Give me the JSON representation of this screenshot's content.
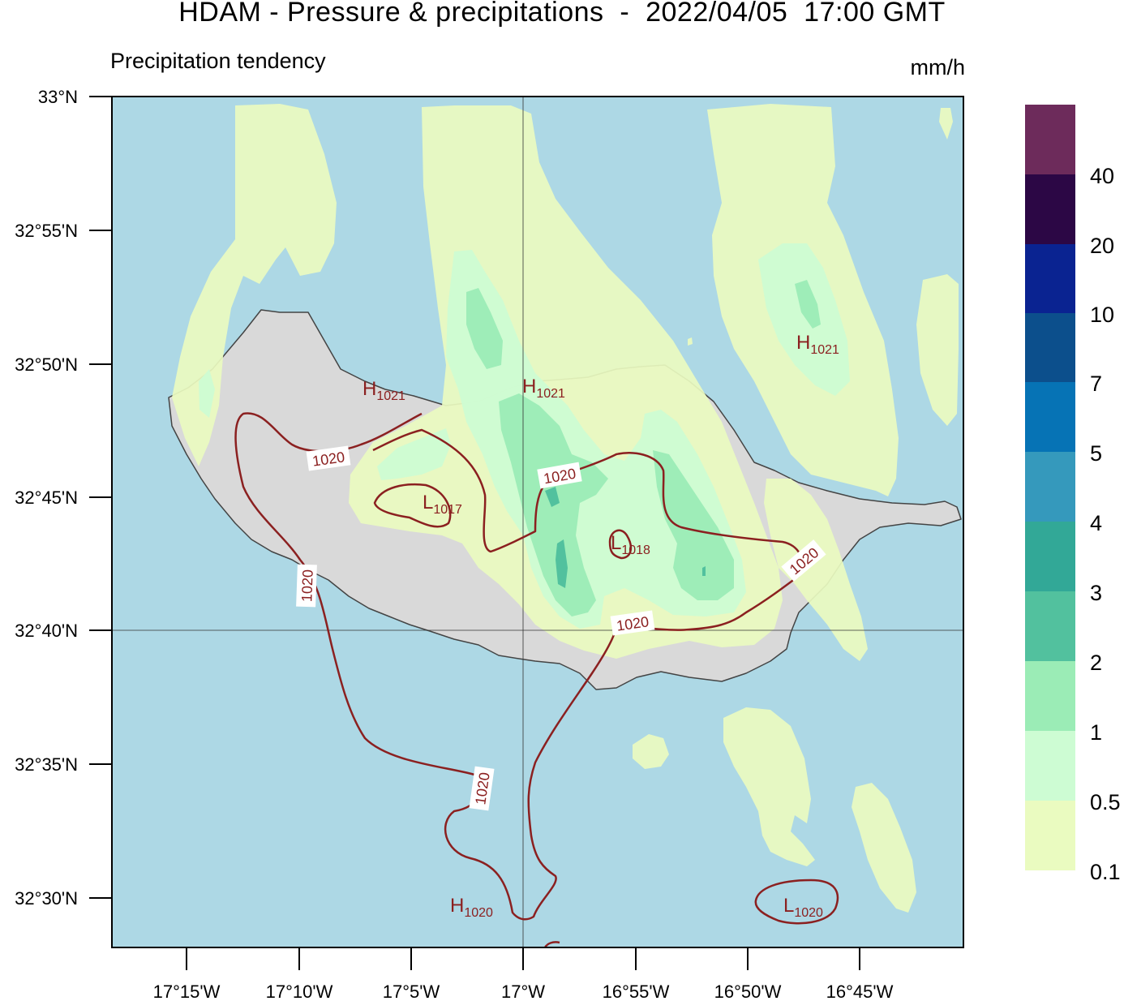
{
  "header": {
    "title": "HDAM - Pressure & precipitations  -  2022/04/05  17:00 GMT",
    "subtitle": "Precipitation tendency",
    "units": "mm/h"
  },
  "axes": {
    "lat_ticks": [
      "33°N",
      "32°55'N",
      "32°50'N",
      "32°45'N",
      "32°40'N",
      "32°35'N",
      "32°30'N"
    ],
    "lon_ticks": [
      "17°15'W",
      "17°10'W",
      "17°5'W",
      "17°W",
      "16°55'W",
      "16°50'W",
      "16°45'W"
    ]
  },
  "colorbar": {
    "labels": [
      "40",
      "20",
      "10",
      "7",
      "5",
      "4",
      "3",
      "2",
      "1",
      "0.5",
      "0.1"
    ],
    "colors": [
      "#eafbc0",
      "#cdfcd3",
      "#9becb6",
      "#52c19e",
      "#32a897",
      "#3599bc",
      "#0673b5",
      "#0c4f8c",
      "#0a2391",
      "#2c0745",
      "#6d2b5b"
    ]
  },
  "colors": {
    "sea": "#add8e5",
    "land": "#d9d9d9",
    "coast": "#444444",
    "isobar": "#8b2020",
    "precip_light": "#eafbc0",
    "precip_half": "#cdfcd3",
    "precip_one": "#9becb6",
    "precip_two": "#52c19e"
  },
  "isobars": {
    "label": "1020"
  },
  "pressure_centers": [
    {
      "type": "H",
      "value": "1021"
    },
    {
      "type": "H",
      "value": "1021"
    },
    {
      "type": "H",
      "value": "1021"
    },
    {
      "type": "L",
      "value": "1017"
    },
    {
      "type": "L",
      "value": "1018"
    },
    {
      "type": "H",
      "value": "1020"
    },
    {
      "type": "L",
      "value": "1020"
    }
  ]
}
